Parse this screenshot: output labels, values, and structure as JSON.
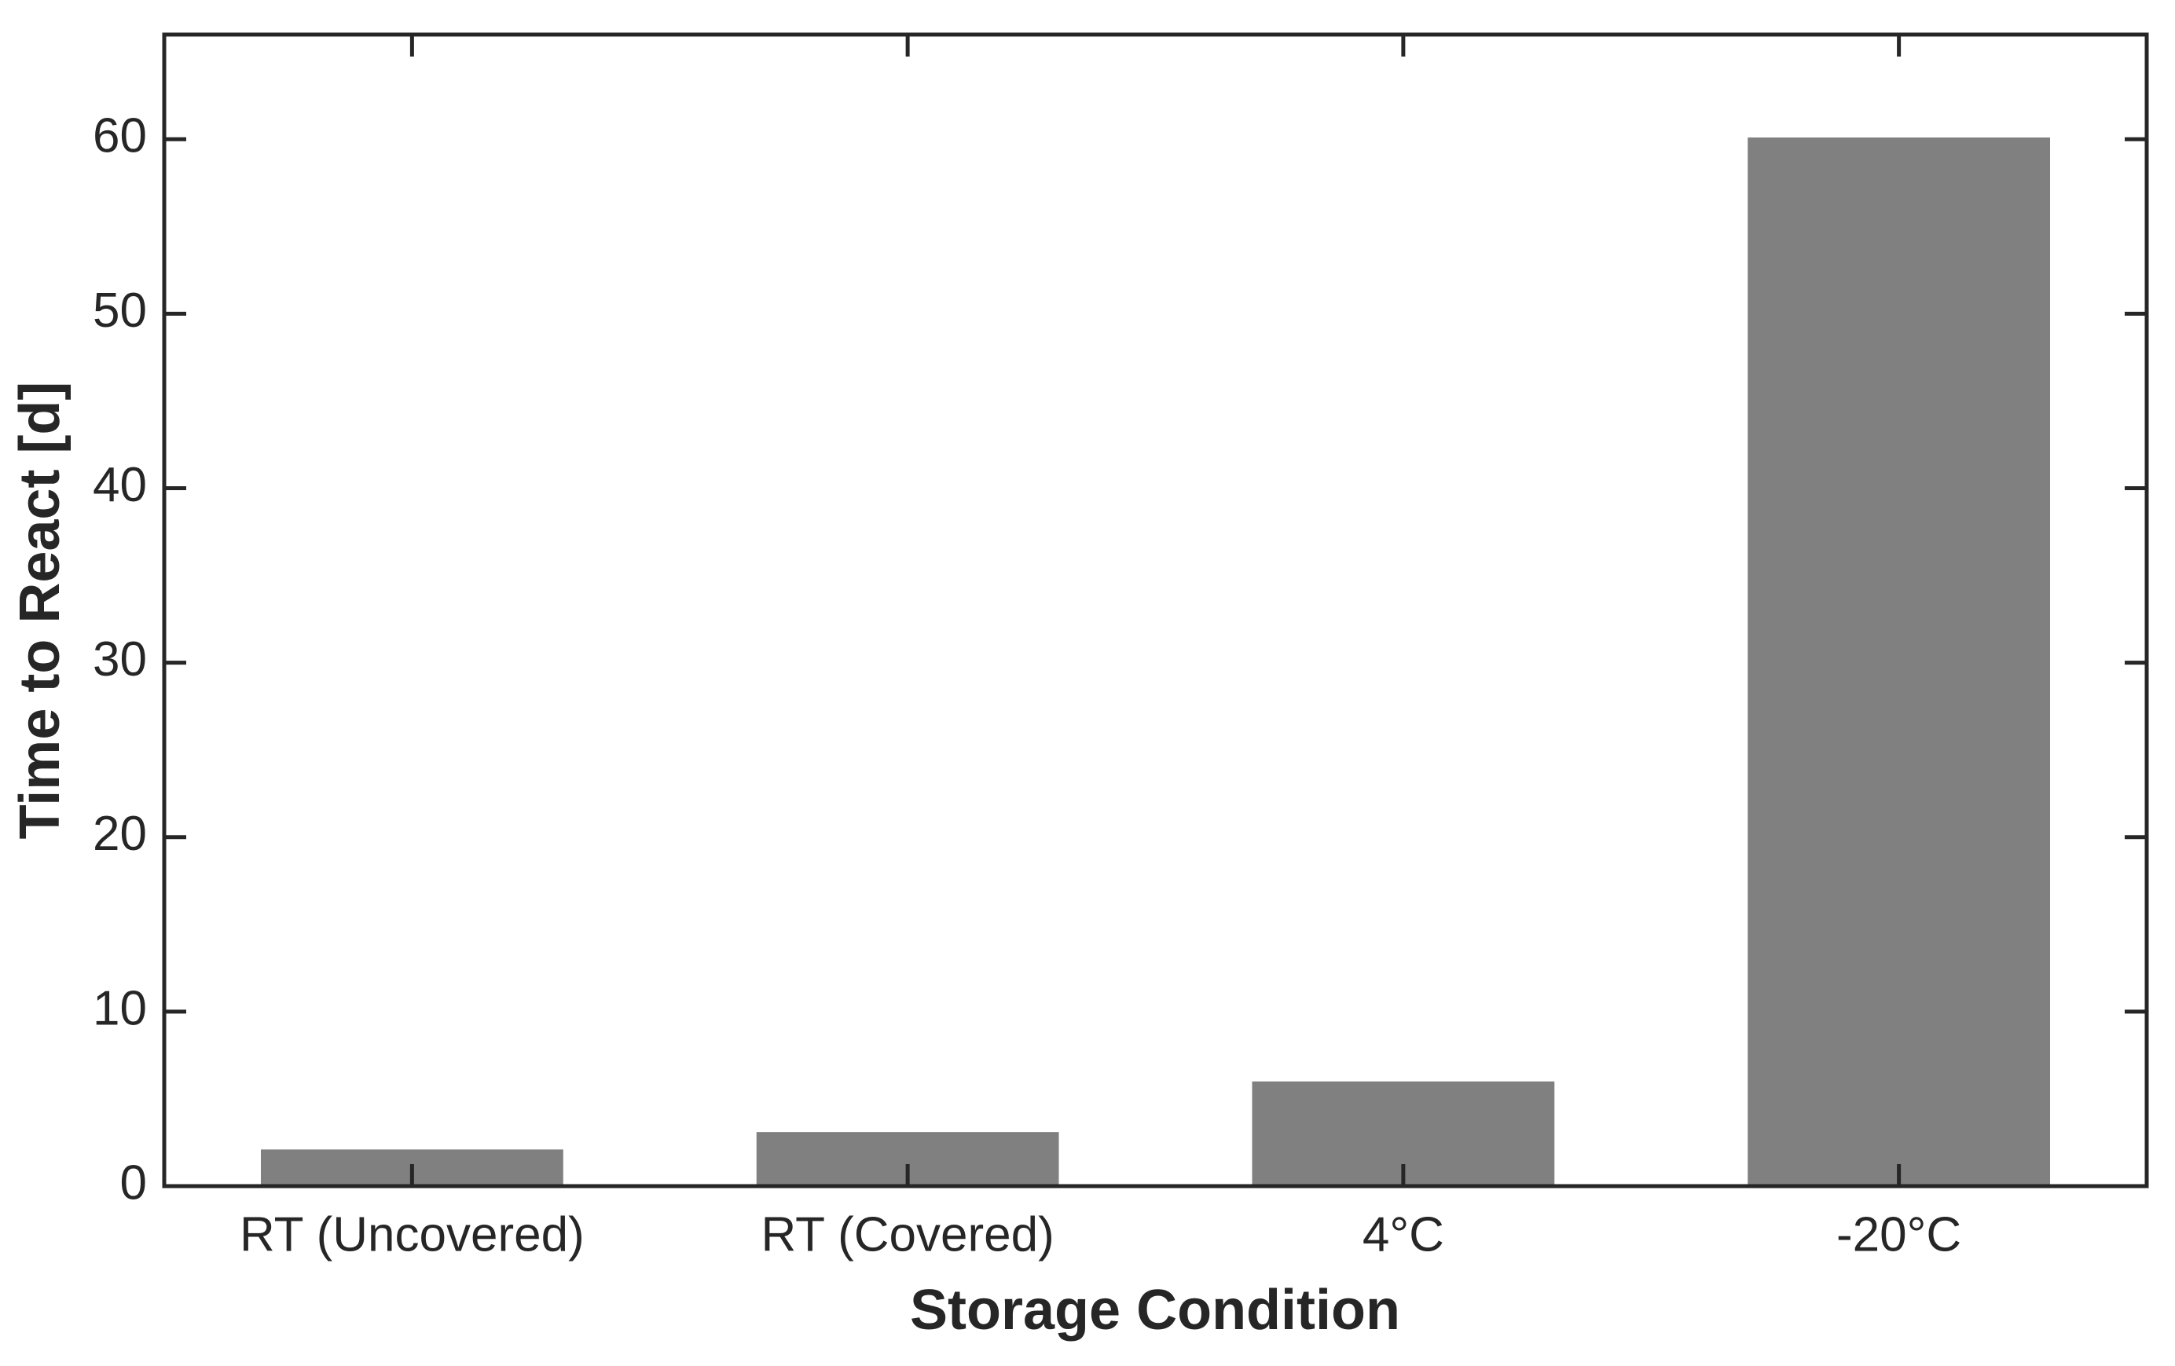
{
  "chart_data": {
    "type": "bar",
    "xlabel": "Storage Condition",
    "ylabel": "Time to React [d]",
    "categories": [
      "RT (Uncovered)",
      "RT (Covered)",
      "4°C",
      "-20°C"
    ],
    "values": [
      2.1,
      3.1,
      6,
      60.1
    ],
    "color": "#808080",
    "ylim": [
      0,
      66
    ],
    "yticks": [
      0,
      10,
      20,
      30,
      40,
      50,
      60
    ],
    "grid": false
  }
}
